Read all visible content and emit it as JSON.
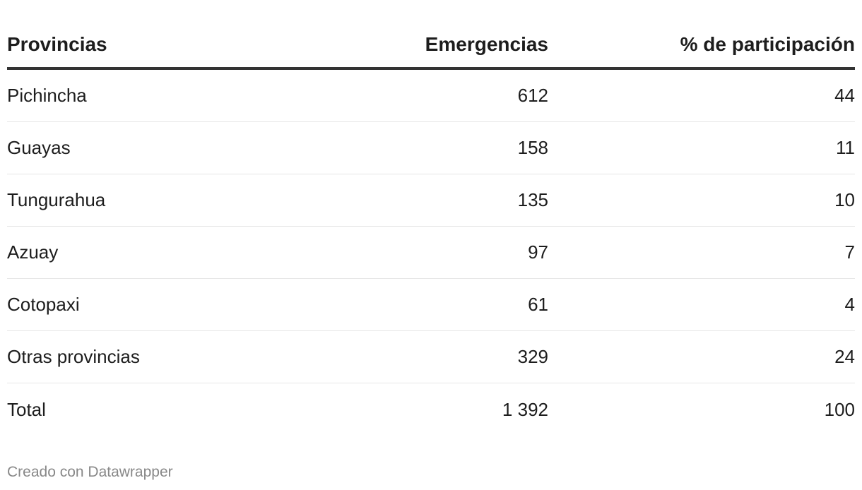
{
  "chart_data": {
    "type": "table",
    "columns": [
      "Provincias",
      "Emergencias",
      "% de participación"
    ],
    "rows": [
      {
        "provincia": "Pichincha",
        "emergencias": "612",
        "participacion": "44"
      },
      {
        "provincia": "Guayas",
        "emergencias": "158",
        "participacion": "11"
      },
      {
        "provincia": "Tungurahua",
        "emergencias": "135",
        "participacion": "10"
      },
      {
        "provincia": "Azuay",
        "emergencias": "97",
        "participacion": "7"
      },
      {
        "provincia": "Cotopaxi",
        "emergencias": "61",
        "participacion": "4"
      },
      {
        "provincia": "Otras provincias",
        "emergencias": "329",
        "participacion": "24"
      },
      {
        "provincia": "Total",
        "emergencias": "1 392",
        "participacion": "100"
      }
    ]
  },
  "footer": "Creado con Datawrapper"
}
